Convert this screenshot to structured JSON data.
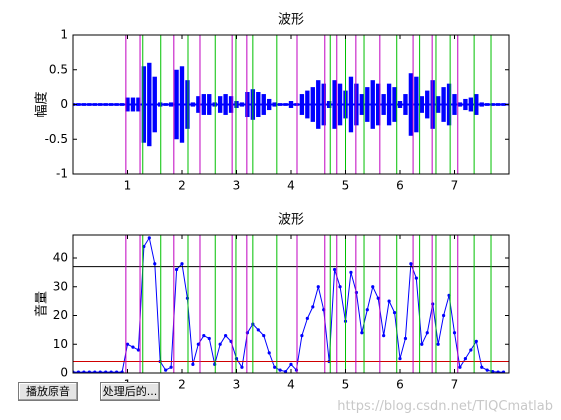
{
  "chart_data": [
    {
      "type": "waveform",
      "title": "波形",
      "ylabel": "幅度",
      "color": "#0000ff",
      "x": [
        0,
        0.1,
        0.2,
        0.3,
        0.4,
        0.5,
        0.6,
        0.7,
        0.8,
        0.9,
        1,
        1.1,
        1.2,
        1.3,
        1.4,
        1.5,
        1.6,
        1.7,
        1.8,
        1.9,
        2,
        2.1,
        2.2,
        2.3,
        2.4,
        2.5,
        2.6,
        2.7,
        2.8,
        2.9,
        3,
        3.1,
        3.2,
        3.3,
        3.4,
        3.5,
        3.6,
        3.7,
        3.8,
        3.9,
        4,
        4.1,
        4.2,
        4.3,
        4.4,
        4.5,
        4.6,
        4.7,
        4.8,
        4.9,
        5,
        5.1,
        5.2,
        5.3,
        5.4,
        5.5,
        5.6,
        5.7,
        5.8,
        5.9,
        6,
        6.1,
        6.2,
        6.3,
        6.4,
        6.5,
        6.6,
        6.7,
        6.8,
        6.9,
        7,
        7.1,
        7.2,
        7.3,
        7.4,
        7.5,
        7.6,
        7.7,
        7.8,
        7.9
      ],
      "values": [
        0.02,
        0.02,
        0.02,
        0.02,
        0.02,
        0.02,
        0.02,
        0.02,
        0.02,
        0.02,
        0.1,
        0.1,
        0.1,
        0.55,
        0.6,
        0.4,
        0.03,
        0.02,
        0.03,
        0.5,
        0.55,
        0.35,
        0.03,
        0.12,
        0.15,
        0.15,
        0.03,
        0.12,
        0.15,
        0.12,
        0.05,
        0.03,
        0.18,
        0.22,
        0.18,
        0.15,
        0.08,
        0.03,
        0.02,
        0.02,
        0.05,
        0.02,
        0.15,
        0.2,
        0.25,
        0.35,
        0.3,
        0.05,
        0.35,
        0.3,
        0.2,
        0.4,
        0.3,
        0.15,
        0.25,
        0.35,
        0.3,
        0.15,
        0.3,
        0.25,
        0.05,
        0.15,
        0.45,
        0.4,
        0.12,
        0.2,
        0.35,
        0.12,
        0.25,
        0.3,
        0.15,
        0.03,
        0.08,
        0.1,
        0.15,
        0.03,
        0.02,
        0.02,
        0.02,
        0.02
      ],
      "xlim": [
        0,
        8
      ],
      "ylim": [
        -1,
        1
      ],
      "xticks": [
        1,
        2,
        3,
        4,
        5,
        6,
        7
      ],
      "yticks": [
        -1,
        -0.5,
        0,
        0.5,
        1
      ],
      "vlines": [
        {
          "color": "#c000c0",
          "x": [
            0.97,
            1.23,
            1.85,
            2.33,
            2.92,
            3.19,
            4.11,
            4.62,
            4.84,
            5.19,
            5.63,
            6.24,
            6.59,
            7.06
          ]
        },
        {
          "color": "#00c000",
          "x": [
            1.28,
            1.61,
            2.11,
            2.61,
            2.99,
            3.3,
            3.74,
            4.72,
            5.0,
            5.34,
            5.94,
            6.36,
            6.66,
            6.92,
            7.36,
            7.67
          ]
        }
      ]
    },
    {
      "type": "line",
      "title": "波形",
      "ylabel": "音量",
      "color": "#0000ff",
      "x": [
        0,
        0.1,
        0.2,
        0.3,
        0.4,
        0.5,
        0.6,
        0.7,
        0.8,
        0.9,
        1,
        1.1,
        1.2,
        1.3,
        1.4,
        1.5,
        1.6,
        1.7,
        1.8,
        1.9,
        2,
        2.1,
        2.2,
        2.3,
        2.4,
        2.5,
        2.6,
        2.7,
        2.8,
        2.9,
        3,
        3.1,
        3.2,
        3.3,
        3.4,
        3.5,
        3.6,
        3.7,
        3.8,
        3.9,
        4,
        4.1,
        4.2,
        4.3,
        4.4,
        4.5,
        4.6,
        4.7,
        4.8,
        4.9,
        5,
        5.1,
        5.2,
        5.3,
        5.4,
        5.5,
        5.6,
        5.7,
        5.8,
        5.9,
        6,
        6.1,
        6.2,
        6.3,
        6.4,
        6.5,
        6.6,
        6.7,
        6.8,
        6.9,
        7,
        7.1,
        7.2,
        7.3,
        7.4,
        7.5,
        7.6,
        7.7,
        7.8,
        7.9
      ],
      "values": [
        0.3,
        0.3,
        0.3,
        0.3,
        0.3,
        0.3,
        0.3,
        0.3,
        0.3,
        0.3,
        10,
        9,
        8,
        44,
        47,
        38,
        4,
        1,
        2,
        36,
        38,
        26,
        3,
        10,
        13,
        12,
        3,
        10,
        13,
        11,
        5,
        2,
        14,
        17,
        15,
        13,
        7,
        2,
        1,
        0.5,
        3,
        1,
        13,
        19,
        23,
        30,
        22,
        4,
        36,
        30,
        18,
        35,
        28,
        14,
        22,
        30,
        26,
        13,
        25,
        21,
        5,
        12,
        38,
        33,
        10,
        14,
        24,
        10,
        20,
        27,
        14,
        2,
        5,
        8,
        11,
        2,
        1,
        0.5,
        0.3,
        0.3
      ],
      "xlim": [
        0,
        8
      ],
      "ylim": [
        0,
        48
      ],
      "xticks": [
        1,
        2,
        3,
        4,
        5,
        6,
        7
      ],
      "yticks": [
        0,
        10,
        20,
        30,
        40
      ],
      "vlines": [
        {
          "color": "#c000c0",
          "x": [
            0.97,
            1.23,
            1.85,
            2.33,
            2.92,
            3.19,
            4.11,
            4.62,
            4.84,
            5.19,
            5.63,
            6.24,
            6.59,
            7.06
          ]
        },
        {
          "color": "#00c000",
          "x": [
            1.28,
            1.61,
            2.11,
            2.61,
            2.99,
            3.3,
            3.74,
            4.72,
            5.0,
            5.34,
            5.94,
            6.36,
            6.66,
            6.92,
            7.36,
            7.67
          ]
        }
      ],
      "hlines": [
        {
          "color": "#000000",
          "y": 37
        },
        {
          "color": "#d00000",
          "y": 4
        }
      ]
    }
  ],
  "buttons": [
    "播放原音",
    "处理后的..."
  ],
  "watermark": "https://blog.csdn.net/TIQCmatlab"
}
